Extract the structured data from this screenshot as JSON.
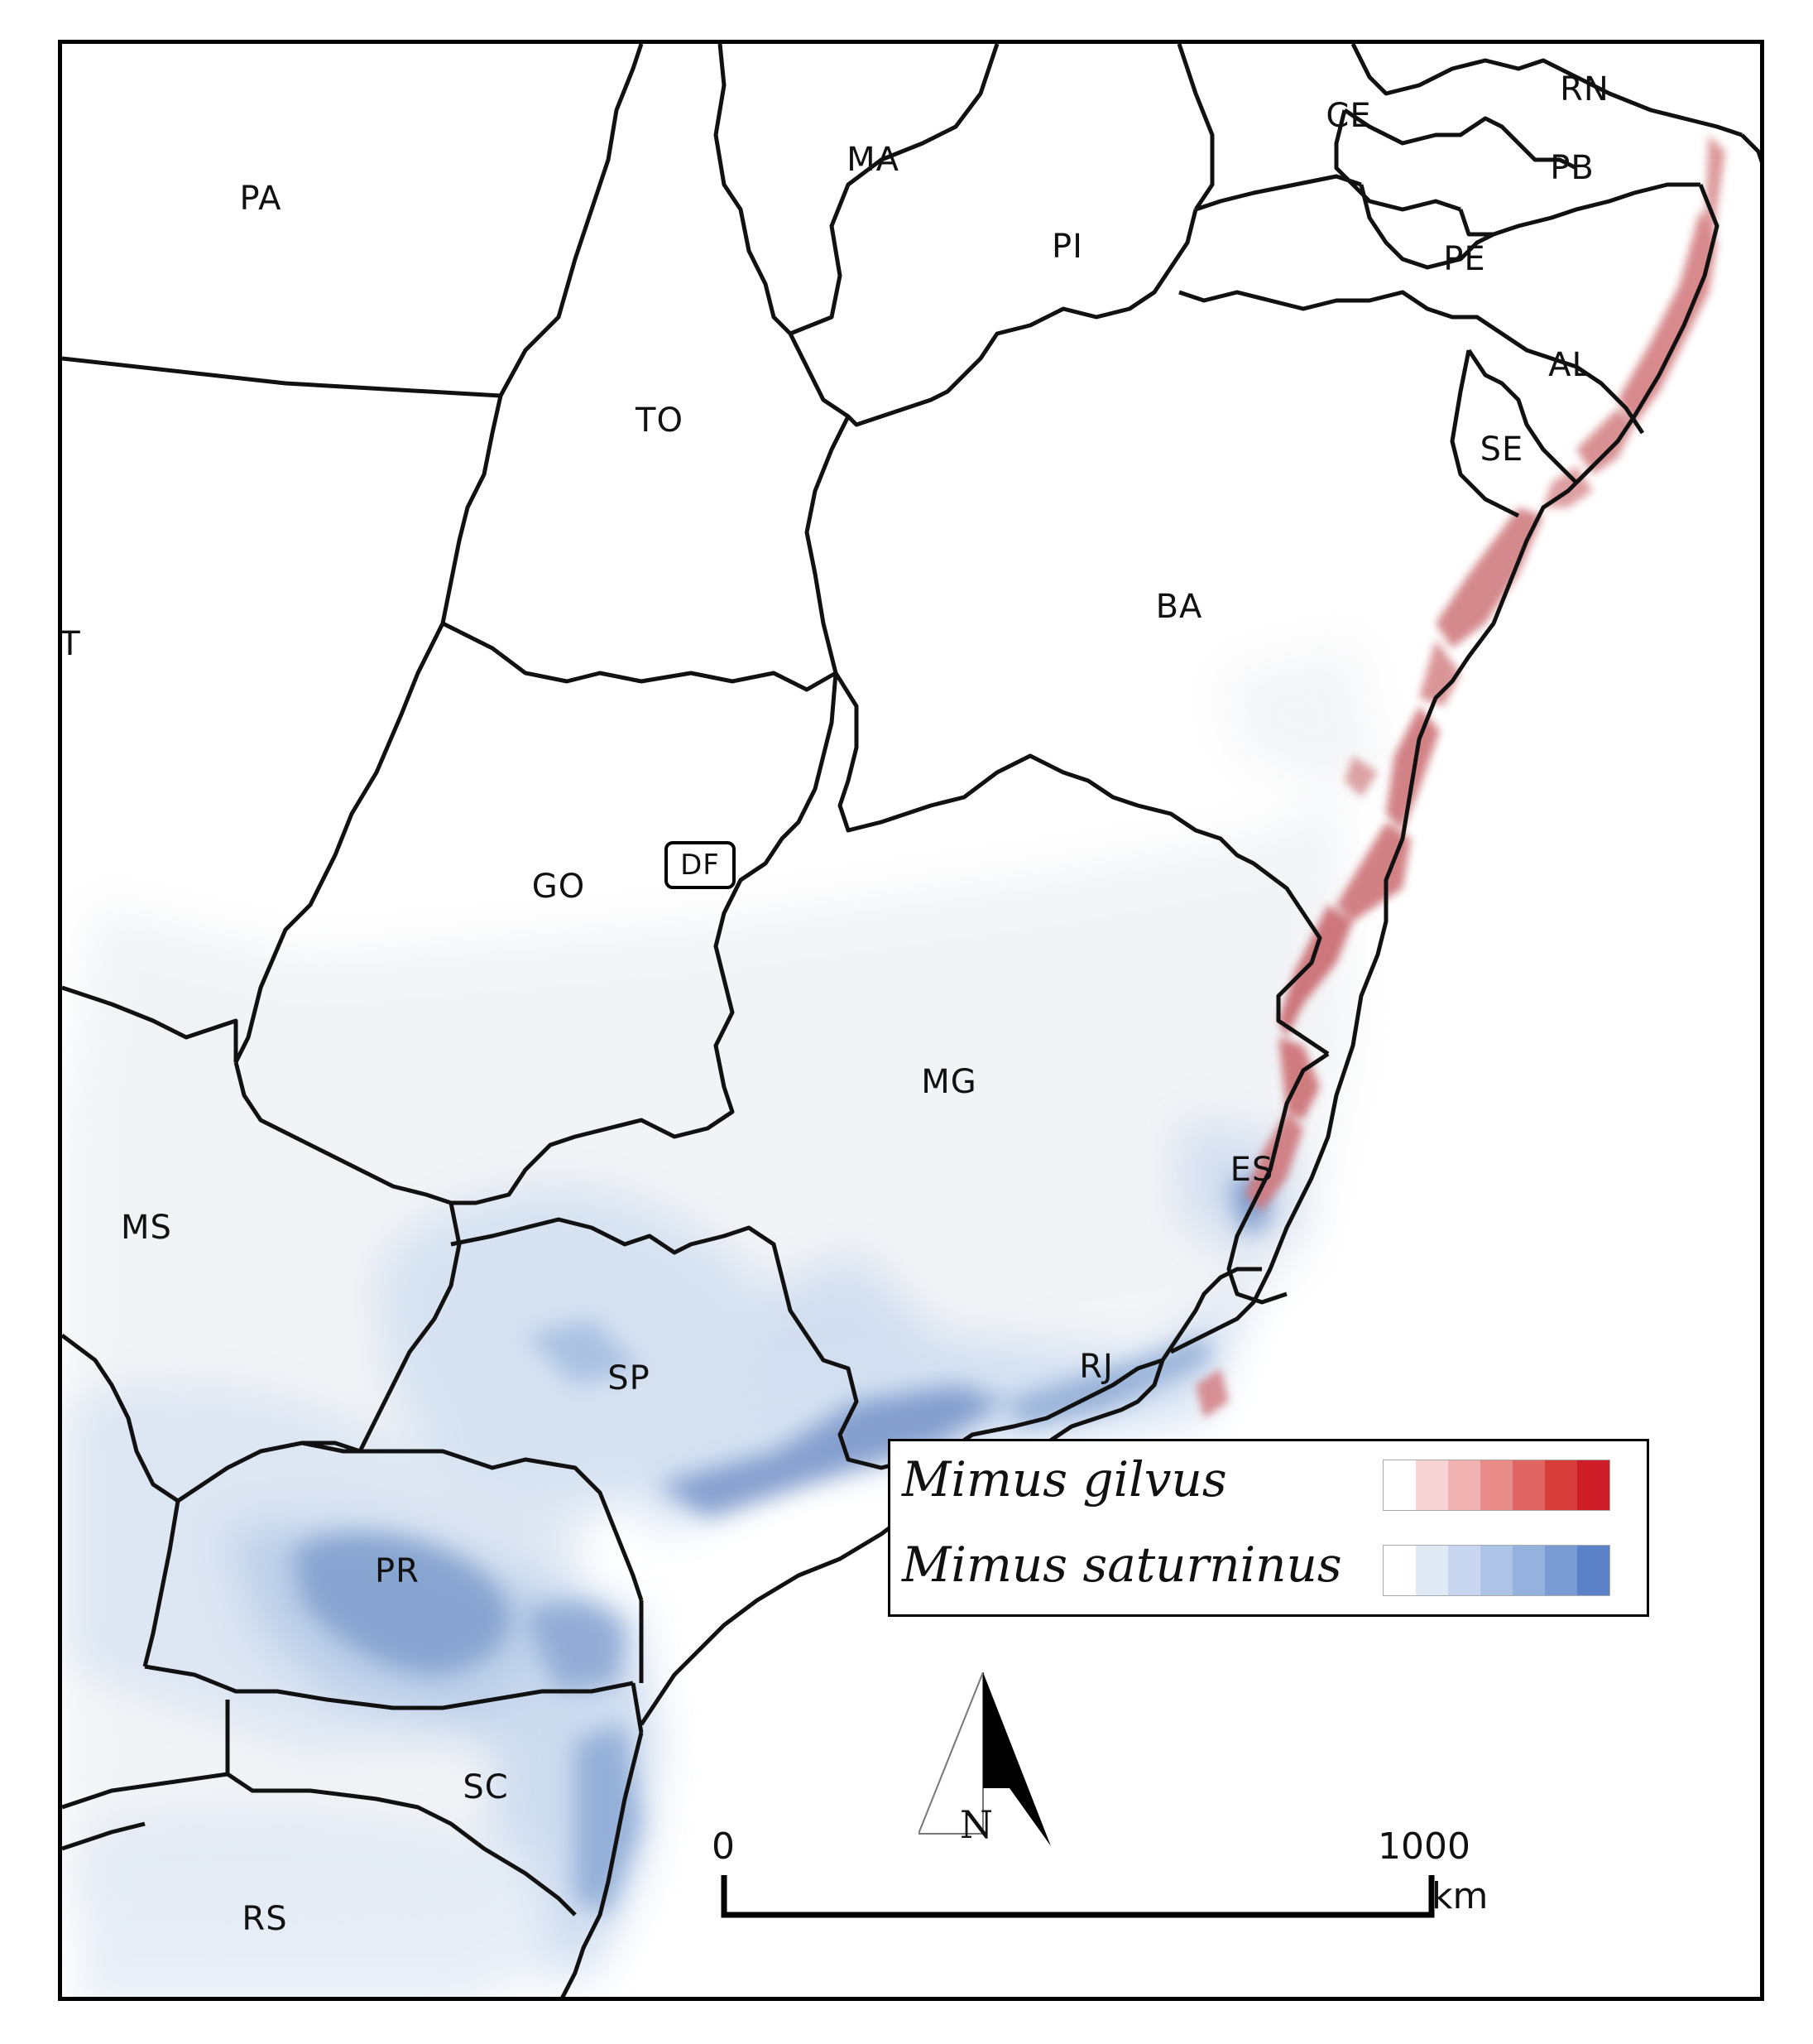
{
  "map": {
    "states": [
      "PA",
      "MA",
      "CE",
      "RN",
      "PB",
      "PE",
      "PI",
      "AL",
      "SE",
      "TO",
      "BA",
      "T",
      "GO",
      "DF",
      "MG",
      "MS",
      "ES",
      "SP",
      "RJ",
      "PR",
      "SC",
      "RS"
    ]
  },
  "legend": {
    "species": [
      {
        "name": "Mimus gilvus",
        "colors": [
          "#ffffff",
          "#f7d4d3",
          "#f0b3b1",
          "#e98c89",
          "#e06562",
          "#d83d3c",
          "#cf1d27"
        ]
      },
      {
        "name": "Mimus saturninus",
        "colors": [
          "#ffffff",
          "#e0e9f6",
          "#c8d7ef",
          "#aec4e7",
          "#95b1de",
          "#7a9bd4",
          "#5b82c8"
        ]
      }
    ]
  },
  "north_arrow": {
    "label": "N"
  },
  "scale_bar": {
    "start_label": "0",
    "end_label": "1000",
    "unit": "km"
  }
}
